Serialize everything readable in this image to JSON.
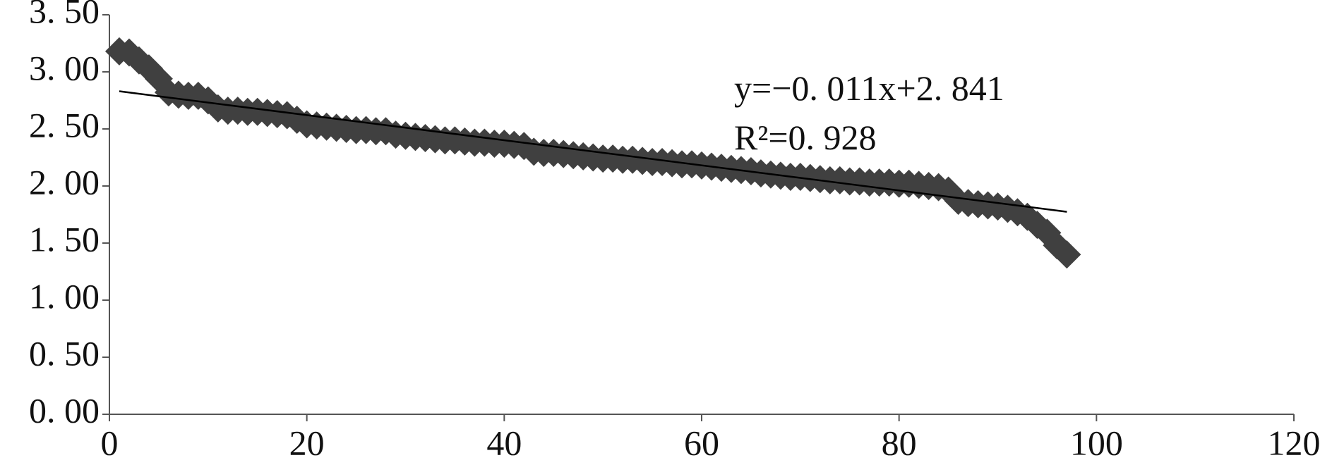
{
  "chart_data": {
    "type": "scatter",
    "x": [
      1,
      2,
      3,
      4,
      5,
      6,
      7,
      8,
      9,
      10,
      11,
      12,
      13,
      14,
      15,
      16,
      17,
      18,
      19,
      20,
      21,
      22,
      23,
      24,
      25,
      26,
      27,
      28,
      29,
      30,
      31,
      32,
      33,
      34,
      35,
      36,
      37,
      38,
      39,
      40,
      41,
      42,
      43,
      44,
      45,
      46,
      47,
      48,
      49,
      50,
      51,
      52,
      53,
      54,
      55,
      56,
      57,
      58,
      59,
      60,
      61,
      62,
      63,
      64,
      65,
      66,
      67,
      68,
      69,
      70,
      71,
      72,
      73,
      74,
      75,
      76,
      77,
      78,
      79,
      80,
      81,
      82,
      83,
      84,
      85,
      86,
      87,
      88,
      89,
      90,
      91,
      92,
      93,
      94,
      95,
      96,
      97
    ],
    "values": [
      3.18,
      3.17,
      3.1,
      3.03,
      2.94,
      2.82,
      2.8,
      2.79,
      2.79,
      2.75,
      2.68,
      2.66,
      2.66,
      2.65,
      2.65,
      2.64,
      2.63,
      2.62,
      2.58,
      2.54,
      2.53,
      2.52,
      2.51,
      2.5,
      2.49,
      2.49,
      2.48,
      2.48,
      2.45,
      2.44,
      2.43,
      2.42,
      2.41,
      2.4,
      2.4,
      2.39,
      2.38,
      2.38,
      2.37,
      2.37,
      2.36,
      2.35,
      2.3,
      2.29,
      2.29,
      2.28,
      2.27,
      2.26,
      2.25,
      2.24,
      2.24,
      2.23,
      2.23,
      2.22,
      2.21,
      2.21,
      2.2,
      2.19,
      2.19,
      2.18,
      2.17,
      2.16,
      2.15,
      2.14,
      2.13,
      2.11,
      2.1,
      2.09,
      2.08,
      2.08,
      2.07,
      2.06,
      2.05,
      2.05,
      2.04,
      2.04,
      2.03,
      2.03,
      2.03,
      2.02,
      2.02,
      2.01,
      2.0,
      1.99,
      1.96,
      1.87,
      1.85,
      1.84,
      1.83,
      1.82,
      1.8,
      1.77,
      1.73,
      1.66,
      1.59,
      1.48,
      1.4
    ],
    "color": "#404040",
    "trendline": {
      "slope": -0.011,
      "intercept": 2.841,
      "x": [
        1,
        97
      ],
      "color": "#000000",
      "label": "y=−0. 011x+2. 841",
      "r2_label": "R²=0. 928"
    },
    "xlim": [
      0,
      120
    ],
    "xticks": [
      0,
      20,
      40,
      60,
      80,
      100,
      120
    ],
    "ylim": [
      0,
      3.5
    ],
    "yticks": [
      {
        "value": 0,
        "label": "0. 00"
      },
      {
        "value": 0.5,
        "label": "0. 50"
      },
      {
        "value": 1,
        "label": "1. 00"
      },
      {
        "value": 1.5,
        "label": "1. 50"
      },
      {
        "value": 2,
        "label": "2. 00"
      },
      {
        "value": 2.5,
        "label": "2. 50"
      },
      {
        "value": 3,
        "label": "3. 00"
      },
      {
        "value": 3.5,
        "label": "3. 50"
      }
    ],
    "grid": false
  }
}
